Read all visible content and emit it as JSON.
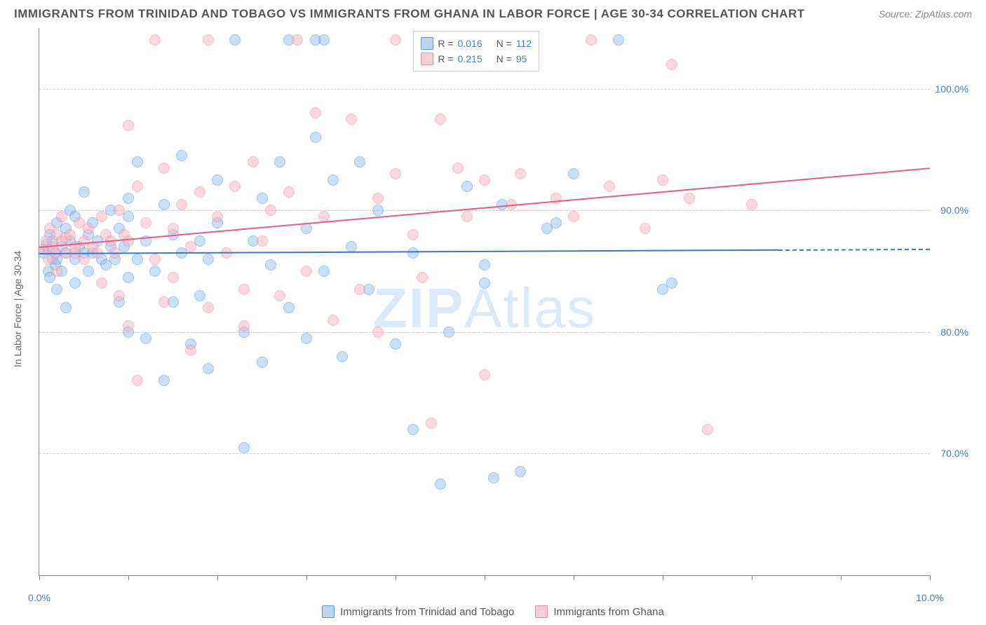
{
  "header": {
    "title": "IMMIGRANTS FROM TRINIDAD AND TOBAGO VS IMMIGRANTS FROM GHANA IN LABOR FORCE | AGE 30-34 CORRELATION CHART",
    "source": "Source: ZipAtlas.com"
  },
  "chart": {
    "type": "scatter",
    "y_axis_title": "In Labor Force | Age 30-34",
    "xlim": [
      0,
      10
    ],
    "ylim": [
      60,
      105
    ],
    "x_ticks": [
      0,
      1,
      2,
      3,
      4,
      5,
      6,
      7,
      8,
      9,
      10
    ],
    "x_tick_labels": {
      "0": "0.0%",
      "10": "10.0%"
    },
    "y_gridlines": [
      70,
      80,
      90,
      100
    ],
    "y_tick_labels": {
      "70": "70.0%",
      "80": "80.0%",
      "90": "90.0%",
      "100": "100.0%"
    },
    "background_color": "#ffffff",
    "grid_color": "#cccccc",
    "axis_color": "#888888",
    "marker_radius": 8,
    "marker_opacity": 0.55,
    "series": [
      {
        "name": "Immigrants from Trinidad and Tobago",
        "fill_color": "#9ec5ed",
        "stroke_color": "#5a93d1",
        "trend_color": "#3b78c4",
        "r_label": "R =",
        "r_value": "0.016",
        "n_label": "N =",
        "n_value": "112",
        "trend": {
          "x0": 0,
          "y0": 86.5,
          "x1": 8.3,
          "y1": 86.8,
          "dash_to_x": 10
        },
        "points": [
          [
            0.05,
            86.5
          ],
          [
            0.08,
            87.2
          ],
          [
            0.1,
            85.0
          ],
          [
            0.1,
            86.8
          ],
          [
            0.12,
            88.0
          ],
          [
            0.12,
            84.5
          ],
          [
            0.15,
            86.0
          ],
          [
            0.15,
            87.5
          ],
          [
            0.18,
            86.5
          ],
          [
            0.18,
            85.5
          ],
          [
            0.2,
            86.0
          ],
          [
            0.2,
            89.0
          ],
          [
            0.2,
            83.5
          ],
          [
            0.25,
            87.0
          ],
          [
            0.25,
            85.0
          ],
          [
            0.3,
            86.5
          ],
          [
            0.3,
            88.5
          ],
          [
            0.3,
            82.0
          ],
          [
            0.35,
            87.5
          ],
          [
            0.35,
            90.0
          ],
          [
            0.4,
            86.0
          ],
          [
            0.4,
            89.5
          ],
          [
            0.4,
            84.0
          ],
          [
            0.45,
            87.0
          ],
          [
            0.5,
            86.5
          ],
          [
            0.5,
            91.5
          ],
          [
            0.55,
            85.0
          ],
          [
            0.55,
            88.0
          ],
          [
            0.6,
            86.5
          ],
          [
            0.6,
            89.0
          ],
          [
            0.65,
            87.5
          ],
          [
            0.7,
            86.0
          ],
          [
            0.75,
            85.5
          ],
          [
            0.8,
            87.0
          ],
          [
            0.8,
            90.0
          ],
          [
            0.85,
            86.0
          ],
          [
            0.9,
            88.5
          ],
          [
            0.9,
            82.5
          ],
          [
            0.95,
            87.0
          ],
          [
            1.0,
            89.5
          ],
          [
            1.0,
            84.5
          ],
          [
            1.0,
            91.0
          ],
          [
            1.0,
            80.0
          ],
          [
            1.1,
            86.0
          ],
          [
            1.1,
            94.0
          ],
          [
            1.2,
            79.5
          ],
          [
            1.2,
            87.5
          ],
          [
            1.3,
            85.0
          ],
          [
            1.4,
            90.5
          ],
          [
            1.4,
            76.0
          ],
          [
            1.5,
            88.0
          ],
          [
            1.5,
            82.5
          ],
          [
            1.6,
            86.5
          ],
          [
            1.6,
            94.5
          ],
          [
            1.7,
            79.0
          ],
          [
            1.8,
            87.5
          ],
          [
            1.8,
            83.0
          ],
          [
            1.9,
            86.0
          ],
          [
            1.9,
            77.0
          ],
          [
            2.0,
            89.0
          ],
          [
            2.0,
            92.5
          ],
          [
            2.2,
            104.0
          ],
          [
            2.3,
            80.0
          ],
          [
            2.3,
            70.5
          ],
          [
            2.4,
            87.5
          ],
          [
            2.5,
            91.0
          ],
          [
            2.5,
            77.5
          ],
          [
            2.6,
            85.5
          ],
          [
            2.7,
            94.0
          ],
          [
            2.8,
            82.0
          ],
          [
            2.8,
            104.0
          ],
          [
            3.0,
            88.5
          ],
          [
            3.0,
            79.5
          ],
          [
            3.1,
            104.0
          ],
          [
            3.1,
            96.0
          ],
          [
            3.2,
            104.0
          ],
          [
            3.2,
            85.0
          ],
          [
            3.3,
            92.5
          ],
          [
            3.4,
            78.0
          ],
          [
            3.5,
            87.0
          ],
          [
            3.6,
            94.0
          ],
          [
            3.7,
            83.5
          ],
          [
            3.8,
            90.0
          ],
          [
            4.0,
            79.0
          ],
          [
            4.2,
            86.5
          ],
          [
            4.2,
            72.0
          ],
          [
            4.5,
            67.5
          ],
          [
            4.6,
            80.0
          ],
          [
            4.8,
            92.0
          ],
          [
            5.0,
            85.5
          ],
          [
            5.0,
            84.0
          ],
          [
            5.1,
            68.0
          ],
          [
            5.2,
            90.5
          ],
          [
            5.4,
            68.5
          ],
          [
            5.7,
            88.5
          ],
          [
            5.8,
            89.0
          ],
          [
            6.0,
            93.0
          ],
          [
            6.5,
            104.0
          ],
          [
            7.0,
            83.5
          ],
          [
            7.1,
            84.0
          ]
        ]
      },
      {
        "name": "Immigrants from Ghana",
        "fill_color": "#f5b8c5",
        "stroke_color": "#e68aa2",
        "trend_color": "#e85a8a",
        "r_label": "R =",
        "r_value": "0.215",
        "n_label": "N =",
        "n_value": "95",
        "trend": {
          "x0": 0,
          "y0": 87.0,
          "x1": 10,
          "y1": 93.5
        },
        "points": [
          [
            0.05,
            86.8
          ],
          [
            0.08,
            87.5
          ],
          [
            0.1,
            86.0
          ],
          [
            0.12,
            88.5
          ],
          [
            0.15,
            87.0
          ],
          [
            0.18,
            86.5
          ],
          [
            0.2,
            85.0
          ],
          [
            0.2,
            88.0
          ],
          [
            0.25,
            87.5
          ],
          [
            0.25,
            89.5
          ],
          [
            0.3,
            86.5
          ],
          [
            0.3,
            87.8
          ],
          [
            0.35,
            88.0
          ],
          [
            0.4,
            86.5
          ],
          [
            0.4,
            87.0
          ],
          [
            0.45,
            89.0
          ],
          [
            0.5,
            87.5
          ],
          [
            0.5,
            86.0
          ],
          [
            0.55,
            88.5
          ],
          [
            0.6,
            87.0
          ],
          [
            0.65,
            86.5
          ],
          [
            0.7,
            89.5
          ],
          [
            0.7,
            84.0
          ],
          [
            0.75,
            88.0
          ],
          [
            0.8,
            87.5
          ],
          [
            0.85,
            86.5
          ],
          [
            0.9,
            90.0
          ],
          [
            0.9,
            83.0
          ],
          [
            0.95,
            88.0
          ],
          [
            1.0,
            97.0
          ],
          [
            1.0,
            80.5
          ],
          [
            1.0,
            87.5
          ],
          [
            1.1,
            92.0
          ],
          [
            1.1,
            76.0
          ],
          [
            1.2,
            89.0
          ],
          [
            1.3,
            86.0
          ],
          [
            1.3,
            104.0
          ],
          [
            1.4,
            82.5
          ],
          [
            1.4,
            93.5
          ],
          [
            1.5,
            88.5
          ],
          [
            1.5,
            84.5
          ],
          [
            1.6,
            90.5
          ],
          [
            1.7,
            87.0
          ],
          [
            1.7,
            78.5
          ],
          [
            1.8,
            91.5
          ],
          [
            1.9,
            82.0
          ],
          [
            1.9,
            104.0
          ],
          [
            2.0,
            89.5
          ],
          [
            2.1,
            86.5
          ],
          [
            2.2,
            92.0
          ],
          [
            2.3,
            80.5
          ],
          [
            2.3,
            83.5
          ],
          [
            2.4,
            94.0
          ],
          [
            2.5,
            87.5
          ],
          [
            2.6,
            90.0
          ],
          [
            2.7,
            83.0
          ],
          [
            2.8,
            91.5
          ],
          [
            2.9,
            104.0
          ],
          [
            3.0,
            85.0
          ],
          [
            3.1,
            98.0
          ],
          [
            3.2,
            89.5
          ],
          [
            3.3,
            81.0
          ],
          [
            3.5,
            97.5
          ],
          [
            3.6,
            83.5
          ],
          [
            3.8,
            91.0
          ],
          [
            3.8,
            80.0
          ],
          [
            4.0,
            93.0
          ],
          [
            4.0,
            104.0
          ],
          [
            4.2,
            88.0
          ],
          [
            4.3,
            84.5
          ],
          [
            4.4,
            72.5
          ],
          [
            4.5,
            97.5
          ],
          [
            4.7,
            93.5
          ],
          [
            4.8,
            89.5
          ],
          [
            5.0,
            92.5
          ],
          [
            5.0,
            76.5
          ],
          [
            5.1,
            104.0
          ],
          [
            5.3,
            90.5
          ],
          [
            5.4,
            93.0
          ],
          [
            5.8,
            91.0
          ],
          [
            6.0,
            89.5
          ],
          [
            6.2,
            104.0
          ],
          [
            6.4,
            92.0
          ],
          [
            6.8,
            88.5
          ],
          [
            7.0,
            92.5
          ],
          [
            7.1,
            102.0
          ],
          [
            7.3,
            91.0
          ],
          [
            7.5,
            72.0
          ],
          [
            8.0,
            90.5
          ]
        ]
      }
    ],
    "watermark": {
      "bold": "ZIP",
      "rest": "Atlas"
    }
  },
  "bottom_legend": [
    {
      "swatch": 0,
      "label": "Immigrants from Trinidad and Tobago"
    },
    {
      "swatch": 1,
      "label": "Immigrants from Ghana"
    }
  ]
}
